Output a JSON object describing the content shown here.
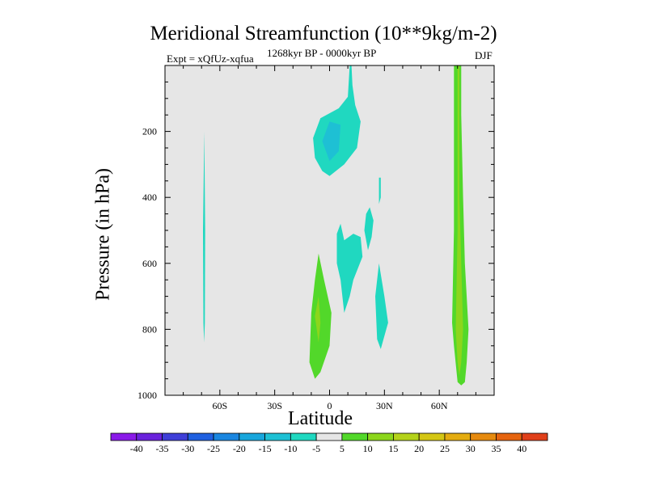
{
  "chart_data": {
    "type": "heatmap",
    "title": "Meridional Streamfunction (10**9kg/m-2)",
    "subtitle_left": "Expt = xQfUz-xqfua",
    "subtitle_center": "1268kyr BP - 0000kyr BP",
    "subtitle_right": "DJF",
    "xlabel": "Latitude",
    "ylabel": "Pressure (in hPa)",
    "xlim": [
      -90,
      90
    ],
    "ylim": [
      1000,
      0
    ],
    "x_ticks": [
      {
        "value": -60,
        "label": "60S"
      },
      {
        "value": -30,
        "label": "30S"
      },
      {
        "value": 0,
        "label": "0"
      },
      {
        "value": 30,
        "label": "30N"
      },
      {
        "value": 60,
        "label": "60N"
      }
    ],
    "y_ticks": [
      {
        "value": 200,
        "label": "200"
      },
      {
        "value": 400,
        "label": "400"
      },
      {
        "value": 600,
        "label": "600"
      },
      {
        "value": 800,
        "label": "800"
      },
      {
        "value": 1000,
        "label": "1000"
      }
    ],
    "background_color": "#e6e6e6",
    "colorbar": {
      "labels": [
        "-40",
        "-35",
        "-30",
        "-25",
        "-20",
        "-15",
        "-10",
        "-5",
        "5",
        "10",
        "15",
        "20",
        "25",
        "30",
        "35",
        "40"
      ],
      "colors": [
        "#8a1ae8",
        "#6a22dc",
        "#3f3fd8",
        "#2060e0",
        "#1a86e0",
        "#18a6dc",
        "#1ec0d4",
        "#20d8c0",
        "#e6e6e6",
        "#52d82a",
        "#8cd61c",
        "#b4d21a",
        "#d4c614",
        "#e4ac10",
        "#e68a0e",
        "#e6640e",
        "#e0401a"
      ]
    },
    "regions": [
      {
        "name": "sh-high-lat-cell",
        "color": "#20d8c0",
        "points": [
          [
            -68.5,
            200
          ],
          [
            -68.0,
            500
          ],
          [
            -68.2,
            780
          ],
          [
            -68.6,
            840
          ],
          [
            -69.0,
            780
          ],
          [
            -69.2,
            500
          ]
        ]
      },
      {
        "name": "upper-tropical-cell",
        "color": "#20d8c0",
        "points": [
          [
            -9,
            220
          ],
          [
            -5,
            160
          ],
          [
            5,
            130
          ],
          [
            10,
            95
          ],
          [
            11,
            0
          ],
          [
            12,
            0
          ],
          [
            12.5,
            60
          ],
          [
            14,
            120
          ],
          [
            17,
            170
          ],
          [
            15,
            250
          ],
          [
            8,
            300
          ],
          [
            0,
            335
          ],
          [
            -4,
            320
          ],
          [
            -8,
            280
          ]
        ]
      },
      {
        "name": "upper-tropical-core",
        "color": "#1ec0d4",
        "points": [
          [
            -4,
            230
          ],
          [
            0,
            170
          ],
          [
            6,
            180
          ],
          [
            5,
            260
          ],
          [
            0,
            290
          ]
        ]
      },
      {
        "name": "mid-tropical-cell",
        "color": "#20d8c0",
        "points": [
          [
            4,
            510
          ],
          [
            6,
            480
          ],
          [
            8,
            530
          ],
          [
            13,
            510
          ],
          [
            17,
            520
          ],
          [
            18,
            580
          ],
          [
            13,
            650
          ],
          [
            11,
            700
          ],
          [
            8,
            750
          ],
          [
            6,
            650
          ],
          [
            4,
            600
          ]
        ]
      },
      {
        "name": "mid-tropical-cell-2",
        "color": "#20d8c0",
        "points": [
          [
            19,
            500
          ],
          [
            20,
            450
          ],
          [
            22,
            430
          ],
          [
            24,
            470
          ],
          [
            23,
            520
          ],
          [
            21,
            560
          ]
        ]
      },
      {
        "name": "mid-tropical-thin",
        "color": "#20d8c0",
        "points": [
          [
            27,
            340
          ],
          [
            28,
            340
          ],
          [
            28,
            400
          ],
          [
            27,
            420
          ]
        ]
      },
      {
        "name": "lower-tropical-cell",
        "color": "#20d8c0",
        "points": [
          [
            25,
            700
          ],
          [
            27,
            600
          ],
          [
            30,
            700
          ],
          [
            32,
            780
          ],
          [
            31,
            800
          ],
          [
            28,
            860
          ],
          [
            26,
            830
          ]
        ]
      },
      {
        "name": "eq-lower-positive",
        "color": "#52d82a",
        "points": [
          [
            -10,
            750
          ],
          [
            -8,
            650
          ],
          [
            -6,
            570
          ],
          [
            -3,
            650
          ],
          [
            1,
            750
          ],
          [
            0,
            850
          ],
          [
            -5,
            930
          ],
          [
            -8,
            950
          ],
          [
            -11,
            900
          ]
        ]
      },
      {
        "name": "eq-lower-positive-core",
        "color": "#8cd61c",
        "points": [
          [
            -8,
            760
          ],
          [
            -6,
            700
          ],
          [
            -5,
            780
          ],
          [
            -6,
            840
          ]
        ]
      },
      {
        "name": "nh-high-lat-positive",
        "color": "#52d82a",
        "points": [
          [
            68,
            0
          ],
          [
            72,
            0
          ],
          [
            72,
            150
          ],
          [
            73,
            400
          ],
          [
            74,
            600
          ],
          [
            76,
            800
          ],
          [
            75,
            900
          ],
          [
            74,
            960
          ],
          [
            72,
            970
          ],
          [
            70,
            960
          ],
          [
            68,
            850
          ],
          [
            67,
            780
          ],
          [
            68,
            500
          ],
          [
            68,
            200
          ]
        ]
      },
      {
        "name": "nh-high-lat-positive-core",
        "color": "#8cd61c",
        "points": [
          [
            70,
            0
          ],
          [
            71,
            0
          ],
          [
            71,
            400
          ],
          [
            72,
            600
          ],
          [
            73,
            800
          ],
          [
            72,
            900
          ],
          [
            71,
            940
          ],
          [
            70,
            900
          ],
          [
            69,
            800
          ],
          [
            70,
            500
          ]
        ]
      }
    ]
  }
}
